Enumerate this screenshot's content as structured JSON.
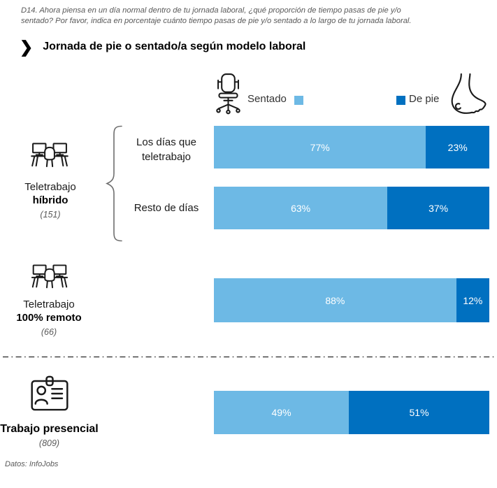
{
  "header": {
    "question": "D14. Ahora piensa en un día normal dentro de tu jornada laboral, ¿qué proporción de tiempo pasas de pie y/o sentado? Por favor, indica en porcentaje cuánto tiempo pasas de pie y/o sentado a lo largo de tu jornada laboral.",
    "title": "Jornada de pie o sentado/a según modelo laboral",
    "chevron": "❯"
  },
  "legend": {
    "sitting": "Sentado",
    "standing": "De pie"
  },
  "colors": {
    "sitting": "#6DB9E5",
    "standing": "#0070C0"
  },
  "groups": {
    "hybrid": {
      "line1": "Teletrabajo",
      "line2": "híbrido",
      "count": "(151)"
    },
    "remote": {
      "line1": "Teletrabajo",
      "line2": "100% remoto",
      "count": "(66)"
    },
    "onsite": {
      "line2": "Trabajo presencial",
      "count": "(809)"
    }
  },
  "bars": [
    {
      "row_label": "Los días que teletrabajo",
      "sitting_pct": 77,
      "standing_pct": 23,
      "sitting_label": "77%",
      "standing_label": "23%"
    },
    {
      "row_label": "Resto de días",
      "sitting_pct": 63,
      "standing_pct": 37,
      "sitting_label": "63%",
      "standing_label": "37%"
    },
    {
      "row_label": "",
      "sitting_pct": 88,
      "standing_pct": 12,
      "sitting_label": "88%",
      "standing_label": "12%"
    },
    {
      "row_label": "",
      "sitting_pct": 49,
      "standing_pct": 51,
      "sitting_label": "49%",
      "standing_label": "51%"
    }
  ],
  "footer": {
    "source": "Datos: InfoJobs"
  },
  "chart_data": {
    "type": "bar",
    "orientation": "horizontal",
    "stacked": true,
    "unit": "percent",
    "title": "Jornada de pie o sentado/a según modelo laboral",
    "legend_entries": [
      "Sentado",
      "De pie"
    ],
    "legend_position": "top",
    "xlim": [
      0,
      100
    ],
    "categories": [
      "Teletrabajo híbrido (151) — Los días que teletrabajo",
      "Teletrabajo híbrido (151) — Resto de días",
      "Teletrabajo 100% remoto (66)",
      "Trabajo presencial (809)"
    ],
    "series": [
      {
        "name": "Sentado",
        "color": "#6DB9E5",
        "values": [
          77,
          63,
          88,
          49
        ]
      },
      {
        "name": "De pie",
        "color": "#0070C0",
        "values": [
          23,
          37,
          12,
          51
        ]
      }
    ],
    "sample_sizes": {
      "Teletrabajo híbrido": 151,
      "Teletrabajo 100% remoto": 66,
      "Trabajo presencial": 809
    },
    "grid": false,
    "source": "Datos: InfoJobs"
  }
}
